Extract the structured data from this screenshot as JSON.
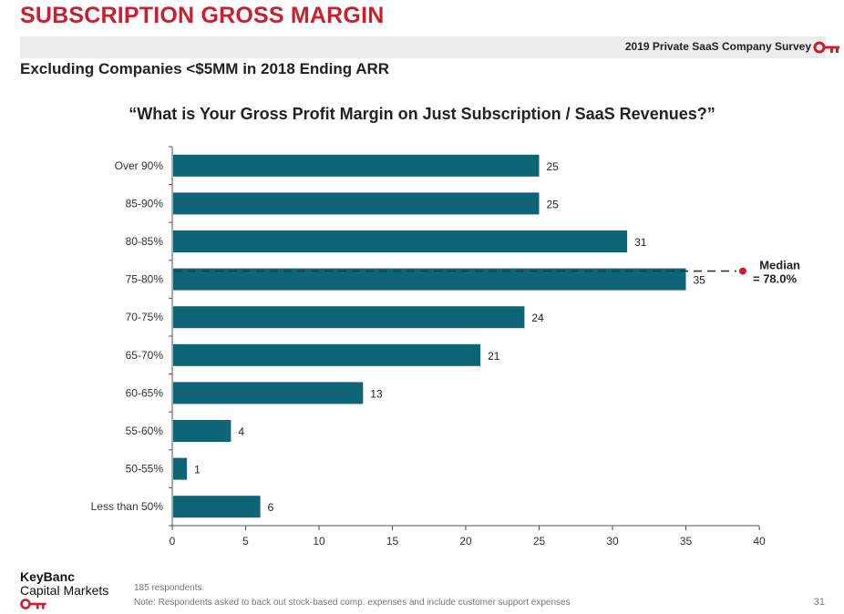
{
  "header": {
    "title": "SUBSCRIPTION GROSS MARGIN",
    "survey": "2019 Private SaaS Company Survey",
    "subtitle": "Excluding Companies <$5MM in 2018 Ending ARR",
    "question": "“What is Your Gross Profit Margin on Just Subscription / SaaS Revenues?”"
  },
  "colors": {
    "accent": "#c8202f",
    "bar": "#0e6577",
    "band": "#ececec"
  },
  "chart_data": {
    "type": "bar",
    "orientation": "horizontal",
    "categories": [
      "Over 90%",
      "85-90%",
      "80-85%",
      "75-80%",
      "70-75%",
      "65-70%",
      "60-65%",
      "55-60%",
      "50-55%",
      "Less than 50%"
    ],
    "values": [
      25,
      25,
      31,
      35,
      24,
      21,
      13,
      4,
      1,
      6
    ],
    "xlim": [
      0,
      40
    ],
    "xticks": [
      0,
      5,
      10,
      15,
      20,
      25,
      30,
      35,
      40
    ],
    "annotation": {
      "line1": "Median",
      "line2": "= 78.0%",
      "category": "75-80%"
    },
    "grid": false
  },
  "footer": {
    "logo_line1": "KeyBanc",
    "logo_line2": "Capital Markets",
    "respondents": "185 respondents",
    "note": "Note: Respondents asked to back out stock-based comp. expenses and include customer support expenses",
    "page_number": "31"
  }
}
